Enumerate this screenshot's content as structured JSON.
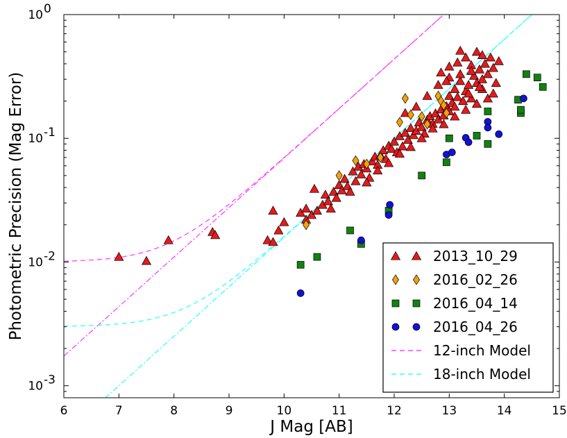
{
  "chart_data": {
    "type": "scatter",
    "xlabel": "J Mag [AB]",
    "ylabel": "Photometric Precision (Mag Error)",
    "xlim": [
      6,
      15
    ],
    "ylim": [
      0.0008,
      1.0
    ],
    "yscale": "log",
    "x_ticks": [
      6,
      7,
      8,
      9,
      10,
      11,
      12,
      13,
      14,
      15
    ],
    "x_tick_labels": [
      "6",
      "7",
      "8",
      "9",
      "10",
      "11",
      "12",
      "13",
      "14",
      "15"
    ],
    "y_ticks": [
      {
        "value": 0.001,
        "base": "10",
        "exp": "-3"
      },
      {
        "value": 0.01,
        "base": "10",
        "exp": "-2"
      },
      {
        "value": 0.1,
        "base": "10",
        "exp": "-1"
      },
      {
        "value": 1.0,
        "base": "10",
        "exp": "0"
      }
    ],
    "grid": false,
    "legend_position": "lower-right",
    "series": [
      {
        "name": "2013_10_29",
        "marker": "triangle",
        "color": "#e41a1c",
        "points": [
          [
            7.0,
            0.011
          ],
          [
            7.5,
            0.0102
          ],
          [
            7.9,
            0.015
          ],
          [
            8.7,
            0.0175
          ],
          [
            8.75,
            0.0165
          ],
          [
            9.7,
            0.015
          ],
          [
            9.8,
            0.0145
          ],
          [
            9.8,
            0.026
          ],
          [
            9.9,
            0.018
          ],
          [
            10.0,
            0.021
          ],
          [
            10.3,
            0.025
          ],
          [
            10.4,
            0.027
          ],
          [
            10.4,
            0.022
          ],
          [
            10.5,
            0.024
          ],
          [
            10.55,
            0.039
          ],
          [
            10.6,
            0.026
          ],
          [
            10.7,
            0.029
          ],
          [
            10.75,
            0.035
          ],
          [
            10.8,
            0.031
          ],
          [
            10.85,
            0.027
          ],
          [
            10.9,
            0.037
          ],
          [
            10.95,
            0.033
          ],
          [
            11.0,
            0.042
          ],
          [
            11.05,
            0.038
          ],
          [
            11.1,
            0.047
          ],
          [
            11.15,
            0.041
          ],
          [
            11.2,
            0.037
          ],
          [
            11.25,
            0.054
          ],
          [
            11.3,
            0.045
          ],
          [
            11.35,
            0.059
          ],
          [
            11.4,
            0.051
          ],
          [
            11.45,
            0.062
          ],
          [
            11.5,
            0.057
          ],
          [
            11.55,
            0.048
          ],
          [
            11.6,
            0.065
          ],
          [
            11.65,
            0.071
          ],
          [
            11.7,
            0.061
          ],
          [
            11.75,
            0.073
          ],
          [
            11.8,
            0.08
          ],
          [
            11.85,
            0.068
          ],
          [
            11.9,
            0.087
          ],
          [
            11.95,
            0.082
          ],
          [
            12.0,
            0.094
          ],
          [
            12.05,
            0.077
          ],
          [
            12.1,
            0.104
          ],
          [
            12.15,
            0.086
          ],
          [
            12.2,
            0.111
          ],
          [
            12.25,
            0.097
          ],
          [
            12.3,
            0.121
          ],
          [
            12.35,
            0.106
          ],
          [
            12.4,
            0.115
          ],
          [
            12.45,
            0.134
          ],
          [
            12.5,
            0.123
          ],
          [
            12.55,
            0.109
          ],
          [
            12.6,
            0.141
          ],
          [
            12.65,
            0.151
          ],
          [
            12.7,
            0.131
          ],
          [
            12.75,
            0.159
          ],
          [
            12.8,
            0.142
          ],
          [
            12.85,
            0.171
          ],
          [
            12.9,
            0.153
          ],
          [
            12.95,
            0.182
          ],
          [
            13.0,
            0.165
          ],
          [
            13.0,
            0.22
          ],
          [
            13.05,
            0.193
          ],
          [
            13.1,
            0.18
          ],
          [
            13.1,
            0.25
          ],
          [
            13.15,
            0.215
          ],
          [
            13.2,
            0.29
          ],
          [
            13.25,
            0.2
          ],
          [
            13.3,
            0.24
          ],
          [
            13.3,
            0.45
          ],
          [
            13.35,
            0.27
          ],
          [
            13.4,
            0.21
          ],
          [
            13.45,
            0.32
          ],
          [
            13.5,
            0.28
          ],
          [
            13.5,
            0.5
          ],
          [
            13.55,
            0.36
          ],
          [
            13.6,
            0.25
          ],
          [
            13.65,
            0.4
          ],
          [
            13.7,
            0.33
          ],
          [
            13.75,
            0.45
          ],
          [
            13.8,
            0.37
          ],
          [
            13.85,
            0.28
          ],
          [
            13.9,
            0.42
          ],
          [
            13.2,
            0.51
          ],
          [
            13.4,
            0.39
          ],
          [
            13.6,
            0.47
          ],
          [
            13.0,
            0.31
          ],
          [
            12.8,
            0.27
          ],
          [
            12.6,
            0.22
          ],
          [
            12.4,
            0.18
          ],
          [
            12.2,
            0.16
          ],
          [
            13.3,
            0.17
          ],
          [
            13.5,
            0.19
          ],
          [
            13.7,
            0.21
          ],
          [
            13.1,
            0.15
          ],
          [
            12.9,
            0.13
          ],
          [
            12.7,
            0.12
          ],
          [
            12.5,
            0.1
          ],
          [
            12.3,
            0.085
          ],
          [
            12.1,
            0.075
          ],
          [
            11.9,
            0.063
          ],
          [
            11.7,
            0.055
          ],
          [
            11.5,
            0.044
          ],
          [
            13.8,
            0.23
          ],
          [
            13.6,
            0.3
          ],
          [
            13.4,
            0.35
          ],
          [
            13.2,
            0.33
          ],
          [
            13.0,
            0.38
          ],
          [
            12.85,
            0.34
          ],
          [
            12.95,
            0.29
          ],
          [
            13.15,
            0.41
          ],
          [
            13.35,
            0.23
          ],
          [
            13.55,
            0.26
          ]
        ]
      },
      {
        "name": "2016_02_26",
        "marker": "diamond",
        "color": "#f2a20c",
        "points": [
          [
            10.4,
            0.02
          ],
          [
            11.0,
            0.05
          ],
          [
            11.3,
            0.066
          ],
          [
            11.5,
            0.062
          ],
          [
            11.75,
            0.07
          ],
          [
            12.1,
            0.135
          ],
          [
            12.2,
            0.21
          ],
          [
            12.3,
            0.155
          ],
          [
            12.5,
            0.15
          ],
          [
            12.6,
            0.13
          ],
          [
            12.8,
            0.22
          ],
          [
            12.85,
            0.2
          ],
          [
            12.9,
            0.185
          ],
          [
            12.95,
            0.16
          ]
        ]
      },
      {
        "name": "2016_04_14",
        "marker": "square",
        "color": "#118211",
        "points": [
          [
            10.3,
            0.0095
          ],
          [
            10.6,
            0.011
          ],
          [
            11.2,
            0.018
          ],
          [
            11.4,
            0.014
          ],
          [
            11.9,
            0.026
          ],
          [
            12.5,
            0.05
          ],
          [
            12.95,
            0.064
          ],
          [
            13.0,
            0.1
          ],
          [
            13.5,
            0.105
          ],
          [
            13.7,
            0.165
          ],
          [
            13.7,
            0.09
          ],
          [
            14.25,
            0.205
          ],
          [
            14.3,
            0.16
          ],
          [
            14.3,
            0.17
          ],
          [
            14.4,
            0.33
          ],
          [
            14.6,
            0.31
          ],
          [
            14.7,
            0.26
          ]
        ]
      },
      {
        "name": "2016_04_26",
        "marker": "circle",
        "color": "#1212d6",
        "points": [
          [
            10.3,
            0.0056
          ],
          [
            11.4,
            0.015
          ],
          [
            11.9,
            0.024
          ],
          [
            11.92,
            0.029
          ],
          [
            12.95,
            0.074
          ],
          [
            13.05,
            0.077
          ],
          [
            13.3,
            0.101
          ],
          [
            13.35,
            0.093
          ],
          [
            13.7,
            0.136
          ],
          [
            13.7,
            0.122
          ],
          [
            13.9,
            0.108
          ],
          [
            14.35,
            0.21
          ]
        ]
      }
    ],
    "models": [
      {
        "name": "12-inch Model",
        "color": "#ff40ff",
        "floor": 0.01,
        "k": 0.4,
        "m0": 12.9
      },
      {
        "name": "18-inch Model",
        "color": "#33ffff",
        "floor": 0.003,
        "k": 0.4,
        "m0": 14.5
      }
    ]
  }
}
